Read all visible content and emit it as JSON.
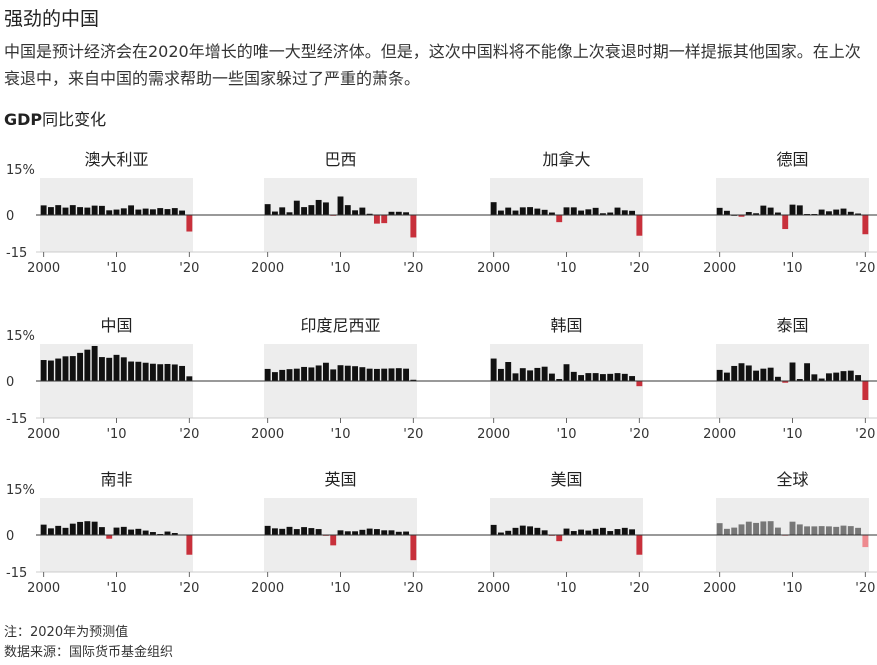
{
  "header": {
    "title": "强劲的中国",
    "subtitle": "中国是预计经济会在2020年增长的唯一大型经济体。但是，这次中国料将不能像上次衰退时期一样提振其他国家。在上次衰退中，来自中国的需求帮助一些国家躲过了严重的萧条。",
    "metric_bold": "GDP",
    "metric_rest": "同比变化"
  },
  "footer": {
    "note": "注：2020年为预测值",
    "source": "数据来源：国际货币基金组织"
  },
  "colors": {
    "positive": "#111111",
    "negative": "#c8303b",
    "world_positive": "#777777",
    "world_negative": "#ee8a8f",
    "panel_bg": "#ededed",
    "axis": "#333333"
  },
  "chart_data": {
    "type": "bar",
    "xlim": [
      2000,
      2020
    ],
    "ylim": [
      -15,
      15
    ],
    "y_ticks": [
      "15%",
      "0",
      "-15"
    ],
    "x_ticks": [
      "2000",
      "'10",
      "'20"
    ],
    "years": [
      2000,
      2001,
      2002,
      2003,
      2004,
      2005,
      2006,
      2007,
      2008,
      2009,
      2010,
      2011,
      2012,
      2013,
      2014,
      2015,
      2016,
      2017,
      2018,
      2019,
      2020
    ],
    "panels": [
      {
        "name": "澳大利亚",
        "values": [
          3.9,
          3.2,
          4.0,
          3.0,
          4.0,
          3.2,
          3.0,
          3.8,
          3.7,
          1.9,
          2.2,
          2.7,
          3.9,
          2.2,
          2.6,
          2.3,
          2.8,
          2.4,
          2.8,
          1.8,
          -6.7
        ]
      },
      {
        "name": "巴西",
        "values": [
          4.4,
          1.4,
          3.1,
          1.1,
          5.8,
          3.2,
          4.0,
          6.1,
          5.1,
          -0.1,
          7.5,
          4.0,
          1.9,
          3.0,
          0.5,
          -3.5,
          -3.3,
          1.3,
          1.3,
          1.1,
          -9.1
        ]
      },
      {
        "name": "加拿大",
        "values": [
          5.2,
          1.8,
          3.0,
          1.8,
          3.1,
          3.2,
          2.6,
          2.1,
          1.0,
          -2.9,
          3.1,
          3.1,
          1.8,
          2.3,
          2.9,
          0.7,
          1.0,
          3.0,
          1.9,
          1.7,
          -8.4
        ]
      },
      {
        "name": "德国",
        "values": [
          2.9,
          1.7,
          0.0,
          -0.7,
          1.2,
          0.7,
          3.8,
          3.0,
          1.0,
          -5.7,
          4.2,
          3.9,
          0.4,
          0.4,
          2.2,
          1.5,
          2.2,
          2.6,
          1.3,
          0.6,
          -7.8
        ]
      },
      {
        "name": "中国",
        "values": [
          8.5,
          8.3,
          9.1,
          10.0,
          10.1,
          11.4,
          12.7,
          14.2,
          9.7,
          9.4,
          10.6,
          9.6,
          7.9,
          7.8,
          7.4,
          7.0,
          6.8,
          6.9,
          6.7,
          6.1,
          1.9
        ]
      },
      {
        "name": "印度尼西亚",
        "values": [
          4.9,
          3.6,
          4.5,
          4.8,
          5.0,
          5.7,
          5.5,
          6.3,
          7.4,
          4.7,
          6.4,
          6.2,
          6.0,
          5.6,
          5.0,
          4.9,
          5.0,
          5.1,
          5.2,
          5.0,
          0.5
        ]
      },
      {
        "name": "韩国",
        "values": [
          9.1,
          4.9,
          7.7,
          3.1,
          5.2,
          4.3,
          5.3,
          5.8,
          3.0,
          0.8,
          6.8,
          3.7,
          2.4,
          3.2,
          3.2,
          2.8,
          2.9,
          3.2,
          2.9,
          2.0,
          -2.1
        ]
      },
      {
        "name": "泰国",
        "values": [
          4.5,
          3.4,
          6.1,
          7.2,
          6.3,
          4.2,
          5.0,
          5.4,
          1.7,
          -0.7,
          7.5,
          0.8,
          7.2,
          2.7,
          1.0,
          3.1,
          3.4,
          4.0,
          4.2,
          2.4,
          -7.7
        ]
      },
      {
        "name": "南非",
        "values": [
          4.2,
          2.7,
          3.7,
          2.9,
          4.6,
          5.3,
          5.6,
          5.4,
          3.2,
          -1.5,
          3.0,
          3.3,
          2.2,
          2.5,
          1.8,
          1.2,
          0.4,
          1.4,
          0.8,
          0.2,
          -8.0
        ]
      },
      {
        "name": "英国",
        "values": [
          3.7,
          2.7,
          2.5,
          3.3,
          2.4,
          3.2,
          2.8,
          2.4,
          -0.3,
          -4.2,
          1.9,
          1.5,
          1.5,
          2.1,
          2.6,
          2.4,
          1.9,
          1.9,
          1.3,
          1.4,
          -10.2
        ]
      },
      {
        "name": "美国",
        "values": [
          4.1,
          1.0,
          1.7,
          2.9,
          3.8,
          3.5,
          2.9,
          1.9,
          -0.1,
          -2.5,
          2.6,
          1.6,
          2.2,
          1.8,
          2.5,
          2.9,
          1.6,
          2.4,
          2.9,
          2.3,
          -8.0
        ]
      },
      {
        "name": "全球",
        "values": [
          4.8,
          2.5,
          3.0,
          4.3,
          5.4,
          4.9,
          5.5,
          5.6,
          3.0,
          -0.1,
          5.4,
          4.3,
          3.5,
          3.5,
          3.6,
          3.5,
          3.3,
          3.8,
          3.6,
          2.9,
          -4.9
        ],
        "muted": true
      }
    ]
  }
}
